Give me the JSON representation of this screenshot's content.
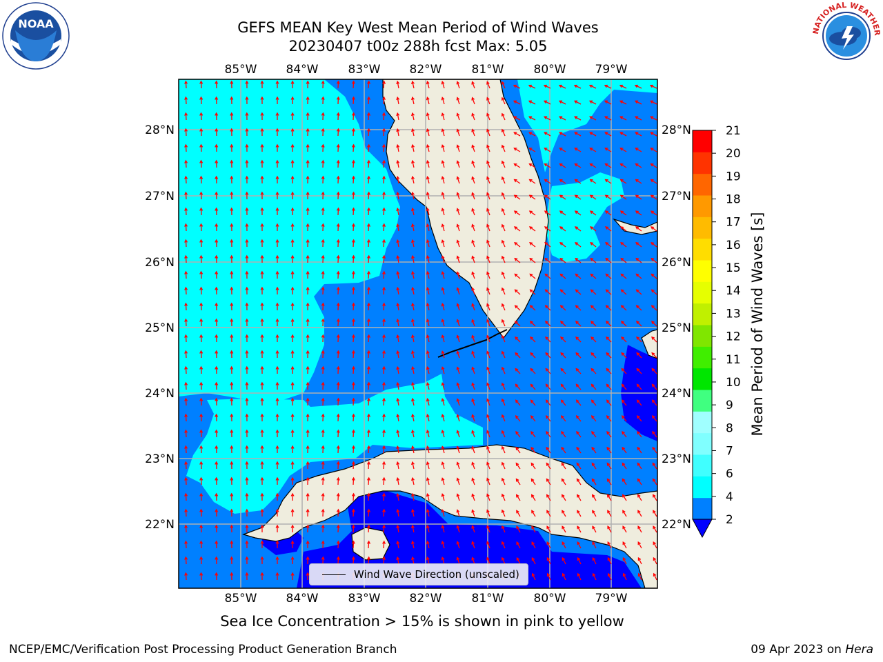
{
  "header": {
    "title_line1": "GEFS MEAN Key West Mean Period of Wind Waves",
    "title_line2": "20230407 t00z 288h fcst   Max: 5.05"
  },
  "logos": {
    "left": "NOAA",
    "right": "NATIONAL WEATHER SERVICE"
  },
  "map": {
    "lon_ticks": [
      "85°W",
      "84°W",
      "83°W",
      "82°W",
      "81°W",
      "80°W",
      "79°W"
    ],
    "lat_ticks_left": [
      "28°N",
      "27°N",
      "26°N",
      "25°N",
      "24°N",
      "23°N",
      "22°N"
    ],
    "lat_ticks_right": [
      "28°N",
      "27°N",
      "26°N",
      "25°N",
      "24°N",
      "23°N",
      "22°N"
    ],
    "colors": {
      "ocean_dark": "#0000ff",
      "ocean_blue": "#0080ff",
      "ocean_cyan": "#00ffff",
      "land": "#efedde",
      "arrow": "#ff0000",
      "grid": "#b0b0b0"
    }
  },
  "legend": {
    "label": "Wind Wave Direction (unscaled)"
  },
  "colorbar": {
    "label": "Mean Period of Wind Waves [s]",
    "ticks": [
      "2",
      "4",
      "6",
      "7",
      "8",
      "9",
      "10",
      "11",
      "12",
      "13",
      "14",
      "15",
      "16",
      "17",
      "18",
      "19",
      "20",
      "21"
    ],
    "colors": [
      "#0080ff",
      "#00ffff",
      "#40ffff",
      "#80ffff",
      "#a0ffff",
      "#40ff80",
      "#00e600",
      "#40ee00",
      "#80e600",
      "#c0f000",
      "#e6ff00",
      "#ffff00",
      "#ffdd00",
      "#ffbb00",
      "#ff9900",
      "#ff6600",
      "#ff3300",
      "#ff0000"
    ],
    "extend_color": "#0000ff"
  },
  "note": "Sea Ice Concentration > 15% is shown in pink to yellow",
  "footer": {
    "left": "NCEP/EMC/Verification Post Processing Product Generation Branch",
    "date": "09 Apr 2023 on",
    "host": "Hera"
  }
}
